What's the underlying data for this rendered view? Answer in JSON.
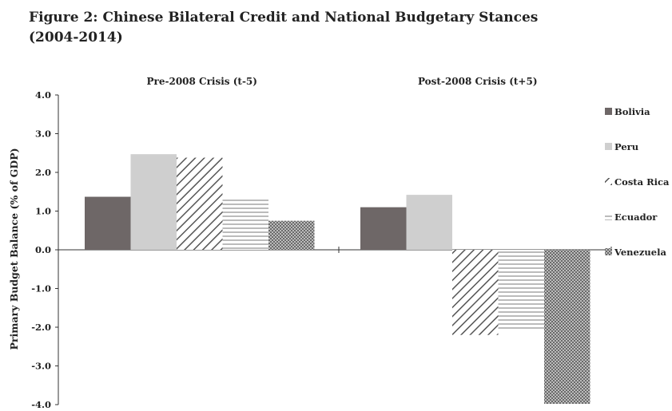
{
  "figure": {
    "title_line1": "Figure 2: Chinese Bilateral Credit and National Budgetary Stances",
    "title_line2": "(2004-2014)"
  },
  "chart_data": {
    "type": "bar",
    "categories": [
      "Pre-2008 Crisis (t-5)",
      "Post-2008 Crisis (t+5)"
    ],
    "series": [
      {
        "name": "Bolivia",
        "values": [
          1.37,
          1.1
        ],
        "pattern": "solid",
        "color": "#6e6767"
      },
      {
        "name": "Peru",
        "values": [
          2.47,
          1.42
        ],
        "pattern": "solid",
        "color": "#cfcfcf"
      },
      {
        "name": "Costa Rica",
        "values": [
          2.38,
          -2.2
        ],
        "pattern": "diagonal",
        "color": "#555555"
      },
      {
        "name": "Ecuador",
        "values": [
          1.33,
          -2.1
        ],
        "pattern": "horizontal",
        "color": "#777777"
      },
      {
        "name": "Venezuela",
        "values": [
          0.75,
          -3.98
        ],
        "pattern": "dots",
        "color": "#777777"
      }
    ],
    "ylabel": "Primary Budget Balance (% of GDP)",
    "ylim": [
      -4.0,
      4.0
    ],
    "yticks": [
      "4.0",
      "3.0",
      "2.0",
      "1.0",
      "0.0",
      "-1.0",
      "-2.0",
      "-3.0",
      "-4.0"
    ],
    "ytick_values": [
      4,
      3,
      2,
      1,
      0,
      -1,
      -2,
      -3,
      -4
    ],
    "grid": false,
    "legend_position": "right"
  }
}
